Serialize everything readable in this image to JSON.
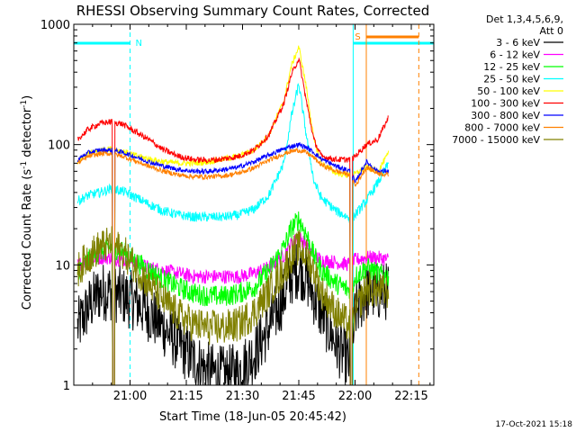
{
  "chart_data": {
    "type": "line",
    "title": "RHESSI Observing Summary Count Rates, Corrected",
    "xlabel": "Start Time (18-Jun-05 20:45:42)",
    "ylabel_main": "Corrected Count Rate (s",
    "ylabel_sup1": "-1",
    "ylabel_mid": " detector",
    "ylabel_sup2": "-1",
    "ylabel_end": ")",
    "yscale": "log",
    "ylim": [
      1,
      1000
    ],
    "xlim_minutes_after_2045": [
      0,
      96
    ],
    "x_ticks": [
      {
        "label": "21:00",
        "t": 15
      },
      {
        "label": "21:15",
        "t": 30
      },
      {
        "label": "21:30",
        "t": 45
      },
      {
        "label": "21:45",
        "t": 60
      },
      {
        "label": "22:00",
        "t": 75
      },
      {
        "label": "22:15",
        "t": 90
      }
    ],
    "y_ticks": [
      {
        "label": "1",
        "v": 1
      },
      {
        "label": "10",
        "v": 10
      },
      {
        "label": "100",
        "v": 100
      },
      {
        "label": "1000",
        "v": 1000
      }
    ],
    "legend_header": [
      "Det 1,3,4,5,6,9,",
      "Att 0"
    ],
    "legend_position": "right",
    "series": [
      {
        "name": "3 - 6 keV",
        "color": "#000000",
        "x": [
          1,
          4,
          7,
          10,
          13,
          16,
          20,
          24,
          28,
          32,
          36,
          40,
          44,
          48,
          52,
          56,
          58,
          60,
          62,
          64,
          66,
          70,
          74,
          75,
          78,
          81,
          84
        ],
        "values": [
          3,
          4.5,
          6,
          6,
          5.5,
          5,
          4,
          3,
          2.2,
          1.6,
          1.3,
          1.2,
          1.3,
          1.8,
          3,
          5.5,
          8,
          9.5,
          8,
          5.5,
          4,
          2.2,
          1.4,
          4,
          6,
          6,
          6
        ]
      },
      {
        "name": "6 - 12 keV",
        "color": "#ff00ff",
        "x": [
          1,
          4,
          7,
          10,
          13,
          16,
          20,
          24,
          28,
          32,
          36,
          40,
          44,
          48,
          52,
          56,
          58,
          60,
          62,
          64,
          66,
          70,
          74,
          75,
          78,
          81,
          84
        ],
        "values": [
          10,
          11,
          11.5,
          11.5,
          11,
          10.5,
          9.5,
          9,
          8.5,
          8,
          8,
          8,
          8,
          8.5,
          9.5,
          12,
          15,
          17,
          15,
          12,
          11,
          10.5,
          10,
          11,
          11.5,
          11.5,
          11
        ]
      },
      {
        "name": "12 - 25 keV",
        "color": "#00ff00",
        "x": [
          1,
          4,
          7,
          10,
          13,
          16,
          20,
          24,
          28,
          32,
          36,
          40,
          44,
          48,
          52,
          56,
          58,
          60,
          62,
          64,
          66,
          70,
          74,
          75,
          78,
          81,
          84
        ],
        "values": [
          9,
          11,
          13,
          14,
          13,
          11,
          9,
          7.5,
          6.5,
          5.8,
          5.5,
          5.5,
          5.8,
          6.5,
          9,
          14,
          20,
          24,
          18,
          12,
          9,
          7,
          6,
          8,
          9.5,
          8.5,
          8
        ]
      },
      {
        "name": "25 - 50 keV",
        "color": "#00ffff",
        "x": [
          1,
          4,
          7,
          10,
          13,
          16,
          20,
          24,
          28,
          32,
          36,
          40,
          44,
          48,
          52,
          56,
          58,
          60,
          62,
          64,
          66,
          70,
          74,
          75,
          78,
          81,
          84
        ],
        "values": [
          34,
          38,
          40,
          43,
          41,
          37,
          32,
          28,
          26,
          25,
          25,
          25,
          26,
          29,
          38,
          70,
          170,
          320,
          120,
          50,
          36,
          28,
          24,
          26,
          34,
          48,
          70
        ]
      },
      {
        "name": "50 - 100 keV",
        "color": "#ffff00",
        "x": [
          1,
          4,
          7,
          10,
          13,
          16,
          20,
          24,
          28,
          32,
          36,
          40,
          44,
          48,
          52,
          56,
          58,
          60,
          62,
          64,
          66,
          70,
          74,
          75,
          78,
          81,
          84
        ],
        "values": [
          72,
          85,
          90,
          92,
          88,
          82,
          76,
          72,
          70,
          70,
          72,
          76,
          80,
          90,
          120,
          230,
          450,
          650,
          300,
          110,
          70,
          58,
          55,
          57,
          65,
          60,
          85
        ]
      },
      {
        "name": "100 - 300 keV",
        "color": "#ff0000",
        "x": [
          1,
          4,
          7,
          10,
          13,
          16,
          20,
          24,
          28,
          32,
          36,
          40,
          44,
          48,
          52,
          56,
          58,
          60,
          62,
          64,
          66,
          70,
          74,
          75,
          78,
          81,
          84
        ],
        "values": [
          110,
          135,
          150,
          155,
          148,
          130,
          110,
          90,
          80,
          75,
          74,
          76,
          80,
          90,
          120,
          220,
          380,
          520,
          230,
          110,
          80,
          75,
          75,
          80,
          100,
          110,
          170
        ]
      },
      {
        "name": "300 - 800 keV",
        "color": "#0000ff",
        "x": [
          1,
          4,
          7,
          10,
          13,
          16,
          20,
          24,
          28,
          32,
          36,
          40,
          44,
          48,
          52,
          56,
          58,
          60,
          62,
          64,
          66,
          70,
          74,
          75,
          78,
          81,
          84
        ],
        "values": [
          75,
          86,
          90,
          90,
          86,
          80,
          72,
          66,
          62,
          60,
          60,
          62,
          65,
          72,
          82,
          92,
          97,
          100,
          95,
          86,
          76,
          66,
          60,
          48,
          72,
          60,
          60
        ]
      },
      {
        "name": "800 - 7000 keV",
        "color": "#ff8000",
        "x": [
          1,
          4,
          7,
          10,
          13,
          16,
          20,
          24,
          28,
          32,
          36,
          40,
          44,
          48,
          52,
          56,
          58,
          60,
          62,
          64,
          66,
          70,
          74,
          75,
          78,
          81,
          84
        ],
        "values": [
          70,
          80,
          84,
          84,
          80,
          74,
          66,
          60,
          56,
          54,
          54,
          55,
          58,
          64,
          74,
          84,
          88,
          90,
          86,
          78,
          68,
          60,
          56,
          45,
          65,
          58,
          56
        ]
      },
      {
        "name": "7000 - 15000 keV",
        "color": "#808000",
        "x": [
          1,
          4,
          7,
          10,
          13,
          16,
          20,
          24,
          28,
          32,
          36,
          40,
          44,
          48,
          52,
          56,
          58,
          60,
          62,
          64,
          66,
          70,
          74,
          75,
          78,
          81,
          84
        ],
        "values": [
          9,
          12,
          14,
          15,
          13,
          10,
          7,
          5,
          3.8,
          3.2,
          3,
          3,
          3.2,
          4,
          6,
          9,
          12,
          14,
          12,
          9,
          6,
          4,
          3,
          4,
          6.5,
          6,
          6
        ]
      }
    ],
    "annotations": [
      {
        "label": "N",
        "color": "#00ffff"
      },
      {
        "label": "S",
        "color": "#ff8000"
      }
    ],
    "footer_date": "17-Oct-2021 15:18"
  }
}
